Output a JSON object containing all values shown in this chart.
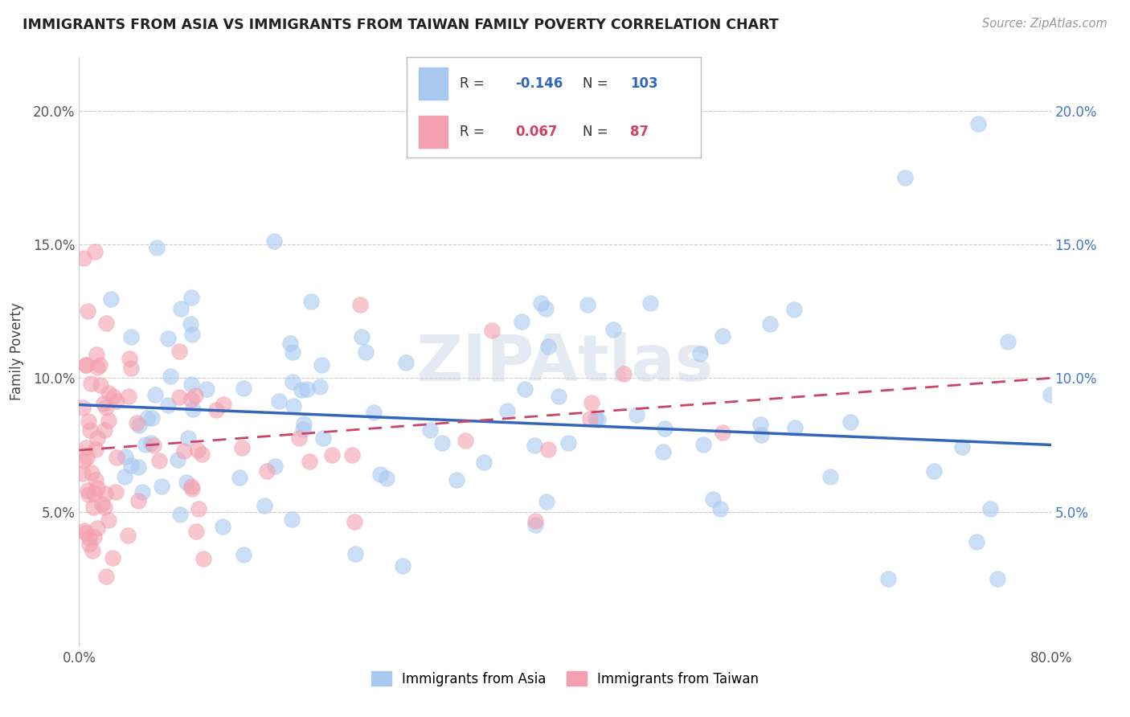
{
  "title": "IMMIGRANTS FROM ASIA VS IMMIGRANTS FROM TAIWAN FAMILY POVERTY CORRELATION CHART",
  "source": "Source: ZipAtlas.com",
  "ylabel": "Family Poverty",
  "xlim": [
    0.0,
    0.8
  ],
  "ylim": [
    0.0,
    0.22
  ],
  "yticks": [
    0.05,
    0.1,
    0.15,
    0.2
  ],
  "ytick_labels": [
    "5.0%",
    "10.0%",
    "15.0%",
    "20.0%"
  ],
  "xtick_labels": [
    "0.0%",
    "80.0%"
  ],
  "legend_asia_R": "-0.146",
  "legend_asia_N": "103",
  "legend_taiwan_R": "0.067",
  "legend_taiwan_N": "87",
  "color_asia": "#a8c8f0",
  "color_taiwan": "#f4a0b0",
  "color_asia_line": "#3366bb",
  "color_taiwan_line": "#cc4466",
  "asia_line_start_y": 0.09,
  "asia_line_end_y": 0.075,
  "taiwan_line_start_y": 0.073,
  "taiwan_line_end_y": 0.1
}
